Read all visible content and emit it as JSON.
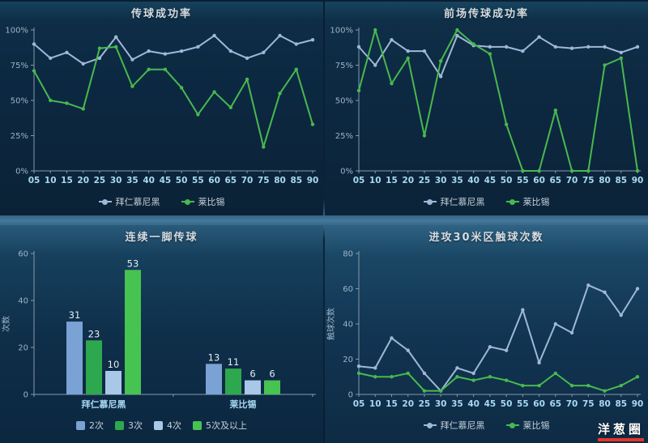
{
  "watermark": {
    "text": "洋葱圈",
    "underline_color": "#e5342b"
  },
  "colors": {
    "axis": "#8699ab",
    "x_tick_label": "#a9d9f2",
    "y_tick_label": "#9db3c6",
    "value_label": "#e4edf4",
    "legend_text": "#c6d1da",
    "title_text": "#d5dce2",
    "bayern": "#9fb8d8",
    "leipzig": "#48b94e"
  },
  "chart_data": [
    {
      "id": "pass-success-rate",
      "type": "line",
      "title": "传球成功率",
      "x": [
        "05",
        "10",
        "15",
        "20",
        "25",
        "30",
        "35",
        "40",
        "45",
        "50",
        "55",
        "60",
        "65",
        "70",
        "75",
        "80",
        "85",
        "90"
      ],
      "ylim": [
        0,
        100
      ],
      "yticks": [
        0,
        25,
        50,
        75,
        100
      ],
      "ytick_suffix": "%",
      "ylabel": "",
      "grid": false,
      "legend_position": "bottom",
      "series": [
        {
          "name": "拜仁慕尼黑",
          "color": "#9fb8d8",
          "values": [
            90,
            80,
            84,
            76,
            80,
            95,
            79,
            85,
            83,
            85,
            88,
            96,
            85,
            80,
            84,
            96,
            90,
            93
          ]
        },
        {
          "name": "莱比锡",
          "color": "#48b94e",
          "values": [
            71,
            50,
            48,
            44,
            87,
            88,
            60,
            72,
            72,
            59,
            40,
            56,
            45,
            65,
            17,
            55,
            72,
            33
          ]
        }
      ]
    },
    {
      "id": "forward-pass-success-rate",
      "type": "line",
      "title": "前场传球成功率",
      "x": [
        "05",
        "10",
        "15",
        "20",
        "25",
        "30",
        "35",
        "40",
        "45",
        "50",
        "55",
        "60",
        "65",
        "70",
        "75",
        "80",
        "85",
        "90"
      ],
      "ylim": [
        0,
        100
      ],
      "yticks": [
        0,
        25,
        50,
        75,
        100
      ],
      "ytick_suffix": "%",
      "ylabel": "",
      "grid": false,
      "legend_position": "bottom",
      "series": [
        {
          "name": "拜仁慕尼黑",
          "color": "#9fb8d8",
          "values": [
            88,
            75,
            93,
            85,
            85,
            67,
            96,
            89,
            88,
            88,
            85,
            95,
            88,
            87,
            88,
            88,
            84,
            88
          ]
        },
        {
          "name": "莱比锡",
          "color": "#48b94e",
          "values": [
            57,
            100,
            62,
            80,
            25,
            78,
            100,
            90,
            83,
            33,
            0,
            0,
            43,
            0,
            0,
            75,
            80,
            0
          ]
        }
      ]
    },
    {
      "id": "consecutive-one-touch-passes",
      "type": "bar",
      "title": "连续一脚传球",
      "categories": [
        "拜仁慕尼黑",
        "莱比锡"
      ],
      "ylim": [
        0,
        60
      ],
      "yticks": [
        0,
        20,
        40,
        60
      ],
      "ytick_suffix": "",
      "ylabel": "次数",
      "grid": false,
      "show_values": true,
      "legend_position": "bottom",
      "series": [
        {
          "name": "2次",
          "color": "#7aa2d4",
          "values": [
            31,
            13
          ]
        },
        {
          "name": "3次",
          "color": "#2ea84e",
          "values": [
            23,
            11
          ]
        },
        {
          "name": "4次",
          "color": "#a9c8e8",
          "values": [
            10,
            6
          ]
        },
        {
          "name": "5次及以上",
          "color": "#47c351",
          "values": [
            53,
            6
          ]
        }
      ]
    },
    {
      "id": "attacking-30m-zone-touches",
      "type": "line",
      "title": "进攻30米区触球次数",
      "x": [
        "05",
        "10",
        "15",
        "20",
        "25",
        "30",
        "35",
        "40",
        "45",
        "50",
        "55",
        "60",
        "65",
        "70",
        "75",
        "80",
        "85",
        "90"
      ],
      "ylim": [
        0,
        80
      ],
      "yticks": [
        0,
        20,
        40,
        60,
        80
      ],
      "ytick_suffix": "",
      "ylabel": "触球次数",
      "grid": false,
      "legend_position": "bottom",
      "series": [
        {
          "name": "拜仁慕尼黑",
          "color": "#9fb8d8",
          "values": [
            16,
            15,
            32,
            25,
            12,
            2,
            15,
            12,
            27,
            25,
            48,
            18,
            40,
            35,
            62,
            58,
            45,
            60
          ]
        },
        {
          "name": "莱比锡",
          "color": "#48b94e",
          "values": [
            12,
            10,
            10,
            12,
            2,
            2,
            10,
            8,
            10,
            8,
            5,
            5,
            12,
            5,
            5,
            2,
            5,
            10
          ]
        }
      ]
    }
  ]
}
